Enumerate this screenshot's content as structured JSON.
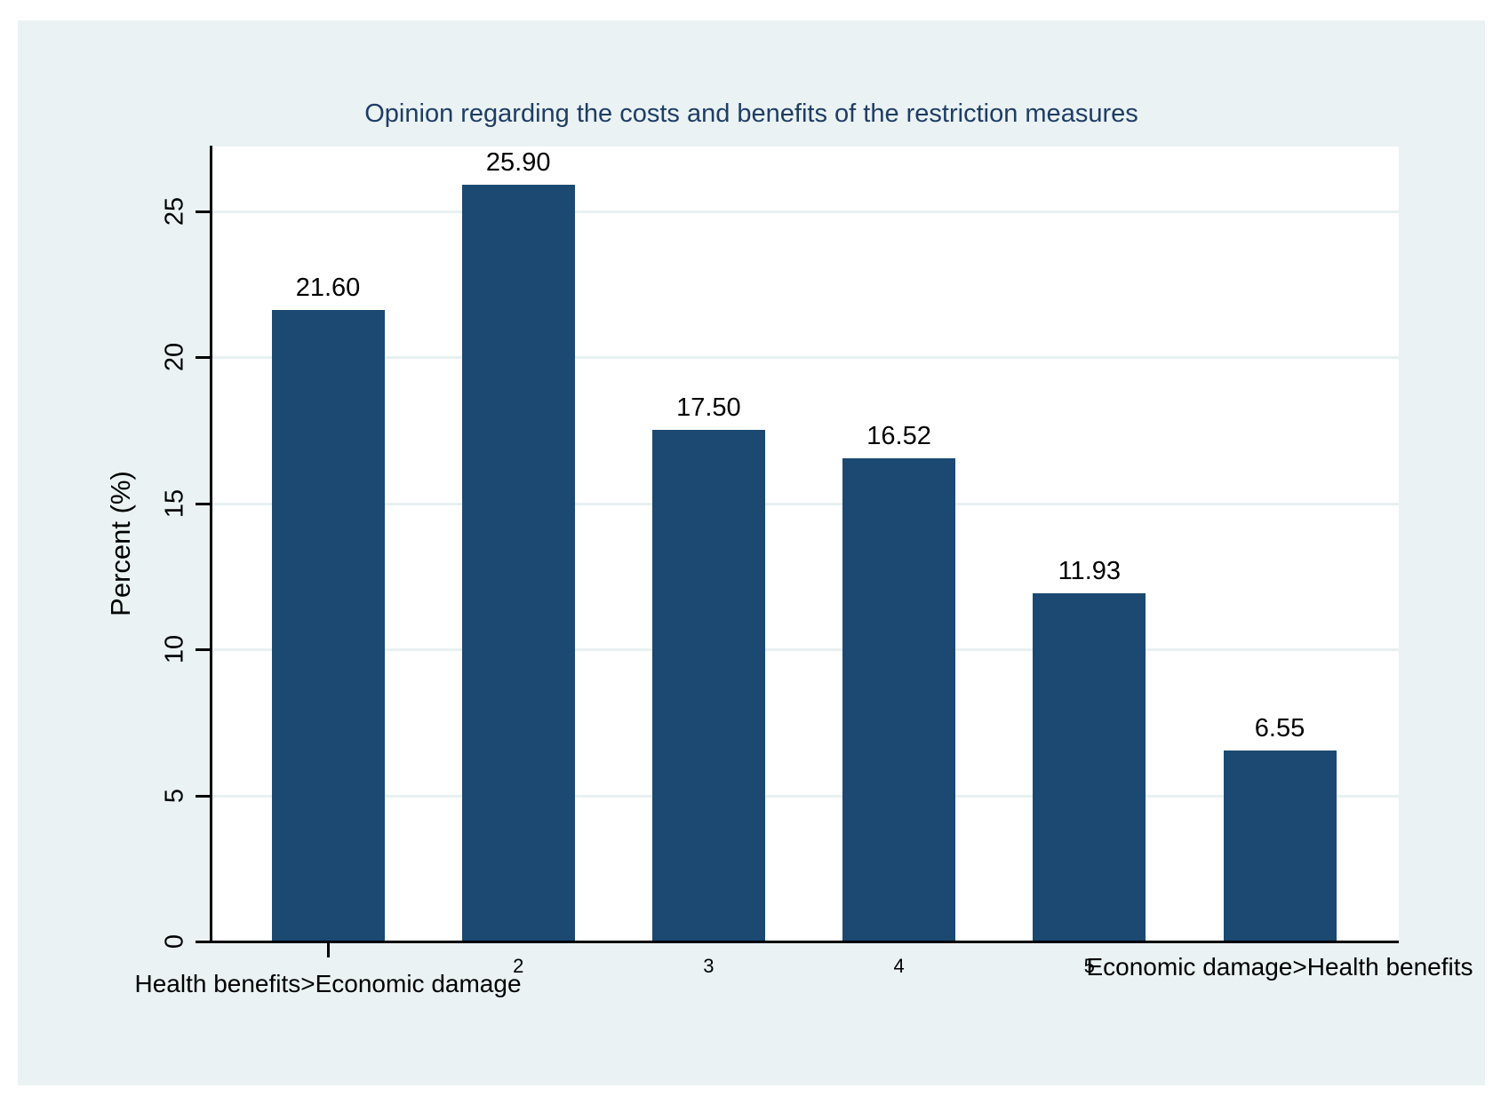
{
  "chart_data": {
    "type": "bar",
    "title": "Opinion regarding the costs and benefits of the restriction measures",
    "xlabel": "",
    "ylabel": "Percent (%)",
    "categories": [
      "Health benefits>Economic damage",
      "2",
      "3",
      "4",
      "5",
      "Economic damage>Health benefits"
    ],
    "values": [
      21.6,
      25.9,
      17.5,
      16.52,
      11.93,
      6.55
    ],
    "value_labels": [
      "21.60",
      "25.90",
      "17.50",
      "16.52",
      "11.93",
      "6.55"
    ],
    "y_ticks": [
      0,
      5,
      10,
      15,
      20,
      25
    ],
    "ylim": [
      0,
      27.2
    ],
    "grid": true,
    "legend": "none",
    "colors": {
      "bar": "#1b4971",
      "title": "#1f3d64",
      "canvas_bg": "#eaf2f3",
      "plot_bg": "#ffffff",
      "gridline": "#e8f0f2",
      "axis": "#000000",
      "label_text": "#000000"
    }
  }
}
